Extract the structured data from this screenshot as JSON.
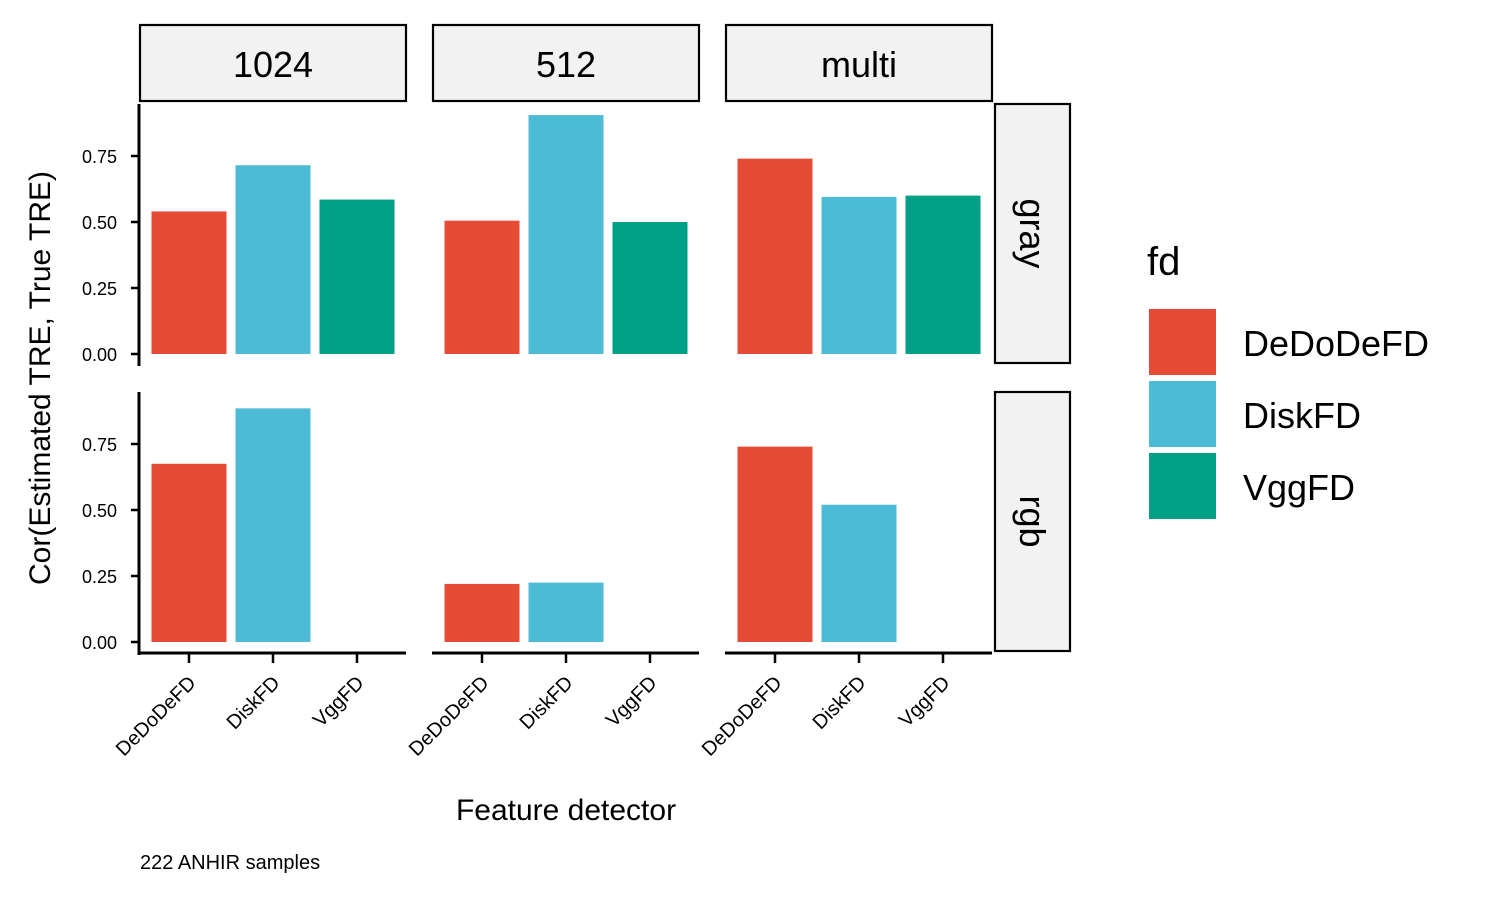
{
  "chart_data": {
    "type": "bar",
    "facet_cols": [
      "1024",
      "512",
      "multi"
    ],
    "facet_rows": [
      "gray",
      "rgb"
    ],
    "categories": [
      "DeDoDeFD",
      "DiskFD",
      "VggFD"
    ],
    "ylabel": "Cor(Estimated TRE, True TRE)",
    "xlabel": "Feature detector",
    "caption": "222 ANHIR samples",
    "ylim": [
      0,
      0.93
    ],
    "yticks": [
      "0.00",
      "0.25",
      "0.50",
      "0.75"
    ],
    "legend": {
      "title": "fd",
      "placement": "right",
      "entries": [
        "DeDoDeFD",
        "DiskFD",
        "VggFD"
      ]
    },
    "colors": {
      "DeDoDeFD": "#e64b35",
      "DiskFD": "#4dbbd5",
      "VggFD": "#00a087"
    },
    "panels": [
      {
        "row": "gray",
        "col": "1024",
        "values": [
          0.54,
          0.715,
          0.585
        ]
      },
      {
        "row": "gray",
        "col": "512",
        "values": [
          0.505,
          0.905,
          0.5
        ]
      },
      {
        "row": "gray",
        "col": "multi",
        "values": [
          0.74,
          0.595,
          0.6
        ]
      },
      {
        "row": "rgb",
        "col": "1024",
        "values": [
          0.675,
          0.885,
          null
        ]
      },
      {
        "row": "rgb",
        "col": "512",
        "values": [
          0.22,
          0.225,
          null
        ]
      },
      {
        "row": "rgb",
        "col": "multi",
        "values": [
          0.74,
          0.52,
          null
        ]
      }
    ]
  }
}
